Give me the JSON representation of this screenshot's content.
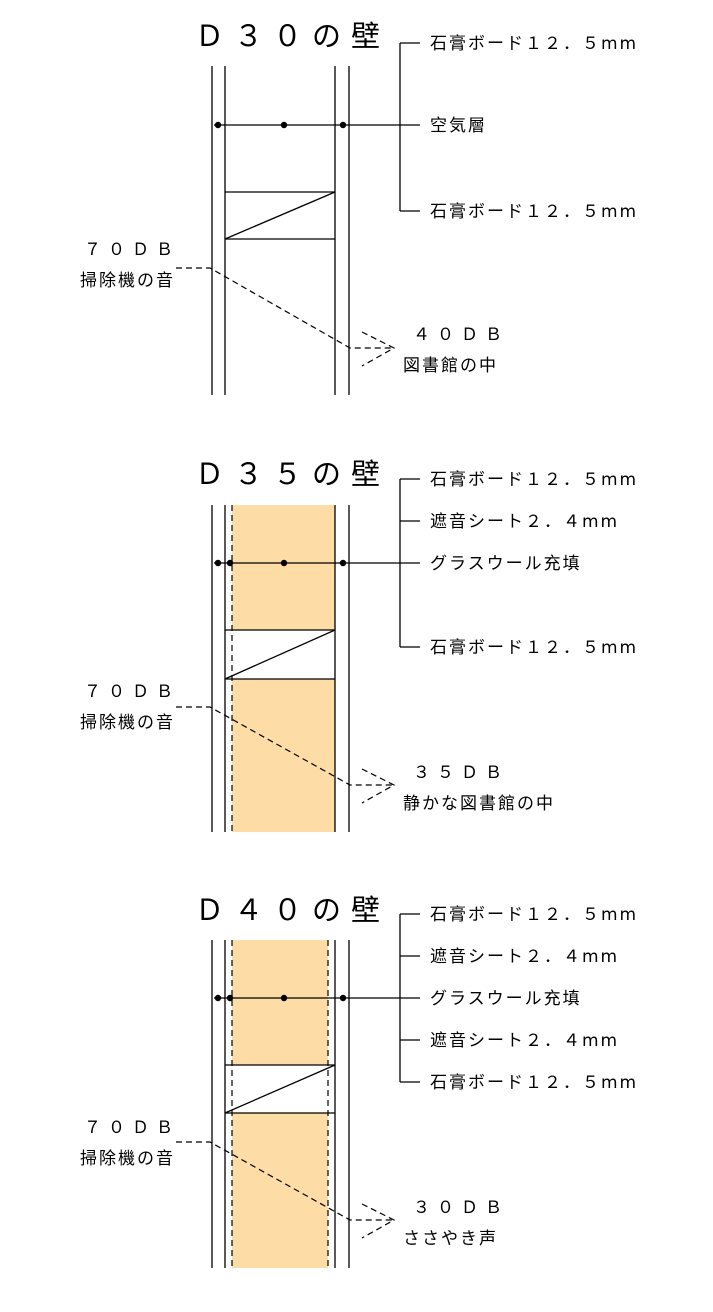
{
  "diagrams": [
    {
      "title": "Ｄ３０の壁",
      "layers": [
        "石膏ボード１２．５mm",
        "空気層",
        "石膏ボード１２．５mm"
      ],
      "source_db": "７０ＤＢ",
      "source_label": "掃除機の音",
      "result_db": "４０ＤＢ",
      "result_label": "図書館の中",
      "insulation": "none",
      "sound_sheet_count": 0
    },
    {
      "title": "Ｄ３５の壁",
      "layers": [
        "石膏ボード１２．５mm",
        "遮音シート２．４mm",
        "グラスウール充填",
        "石膏ボード１２．５mm"
      ],
      "source_db": "７０ＤＢ",
      "source_label": "掃除機の音",
      "result_db": "３５ＤＢ",
      "result_label": "静かな図書館の中",
      "insulation": "glass-wool",
      "sound_sheet_count": 1
    },
    {
      "title": "Ｄ４０の壁",
      "layers": [
        "石膏ボード１２．５mm",
        "遮音シート２．４mm",
        "グラスウール充填",
        "遮音シート２．４mm",
        "石膏ボード１２．５mm"
      ],
      "source_db": "７０ＤＢ",
      "source_label": "掃除機の音",
      "result_db": "３０ＤＢ",
      "result_label": "ささやき声",
      "insulation": "glass-wool",
      "sound_sheet_count": 2
    }
  ],
  "colors": {
    "insulation_fill": "#fddca6",
    "line": "#000000"
  }
}
